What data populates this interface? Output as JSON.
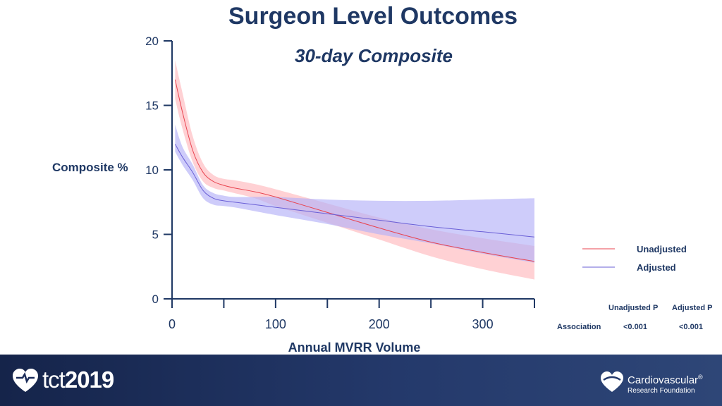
{
  "title": "Surgeon Level Outcomes",
  "subtitle": "30-day Composite",
  "chart_data": {
    "type": "line",
    "title": "30-day Composite",
    "xlabel": "Annual MVRR Volume",
    "ylabel": "Composite %",
    "xlim": [
      0,
      350
    ],
    "ylim": [
      0,
      20
    ],
    "x_ticks": [
      0,
      100,
      200,
      300
    ],
    "y_ticks": [
      0,
      5,
      10,
      15,
      20
    ],
    "series": [
      {
        "name": "Unadjusted",
        "color": "#e8434f",
        "band_color": "#ffb3b8",
        "x": [
          3,
          10,
          20,
          30,
          40,
          50,
          60,
          80,
          100,
          150,
          200,
          250,
          300,
          350
        ],
        "values": [
          17,
          14.5,
          11.5,
          9.8,
          9.1,
          8.8,
          8.6,
          8.3,
          7.9,
          6.7,
          5.5,
          4.4,
          3.6,
          2.9
        ],
        "lower": [
          15.5,
          13.2,
          10.6,
          9.1,
          8.6,
          8.4,
          8.2,
          7.8,
          7.2,
          5.9,
          4.6,
          3.3,
          2.3,
          1.5
        ],
        "upper": [
          18.5,
          16,
          12.6,
          10.5,
          9.6,
          9.3,
          9.2,
          8.9,
          8.5,
          7.4,
          6.3,
          5.4,
          4.7,
          4.1
        ]
      },
      {
        "name": "Adjusted",
        "color": "#6a5fd6",
        "band_color": "#b3b0f7",
        "x": [
          3,
          10,
          20,
          30,
          40,
          50,
          60,
          80,
          100,
          150,
          200,
          250,
          300,
          350
        ],
        "values": [
          12,
          11,
          9.8,
          8.4,
          7.8,
          7.6,
          7.5,
          7.3,
          7.1,
          6.6,
          6.1,
          5.6,
          5.2,
          4.8
        ],
        "lower": [
          11.4,
          10.4,
          9.2,
          7.8,
          7.3,
          7.2,
          7.1,
          6.8,
          6.5,
          5.8,
          5,
          4.3,
          3.5,
          2.8
        ],
        "upper": [
          13.5,
          11.8,
          10.4,
          8.8,
          8.2,
          8,
          7.9,
          7.9,
          7.9,
          7.7,
          7.6,
          7.6,
          7.7,
          7.8
        ]
      }
    ],
    "legend": "right",
    "p_table": {
      "headers": [
        "Unadjusted P",
        "Adjusted P"
      ],
      "row_label": "Association",
      "values": [
        "<0.001",
        "<0.001"
      ]
    }
  },
  "footer": {
    "left_brand_prefix": "tct",
    "left_brand_year": "2019",
    "right_brand_line1": "Cardiovascular",
    "right_brand_reg": "®",
    "right_brand_line2": "Research Foundation",
    "background": "#1c2d5a"
  }
}
